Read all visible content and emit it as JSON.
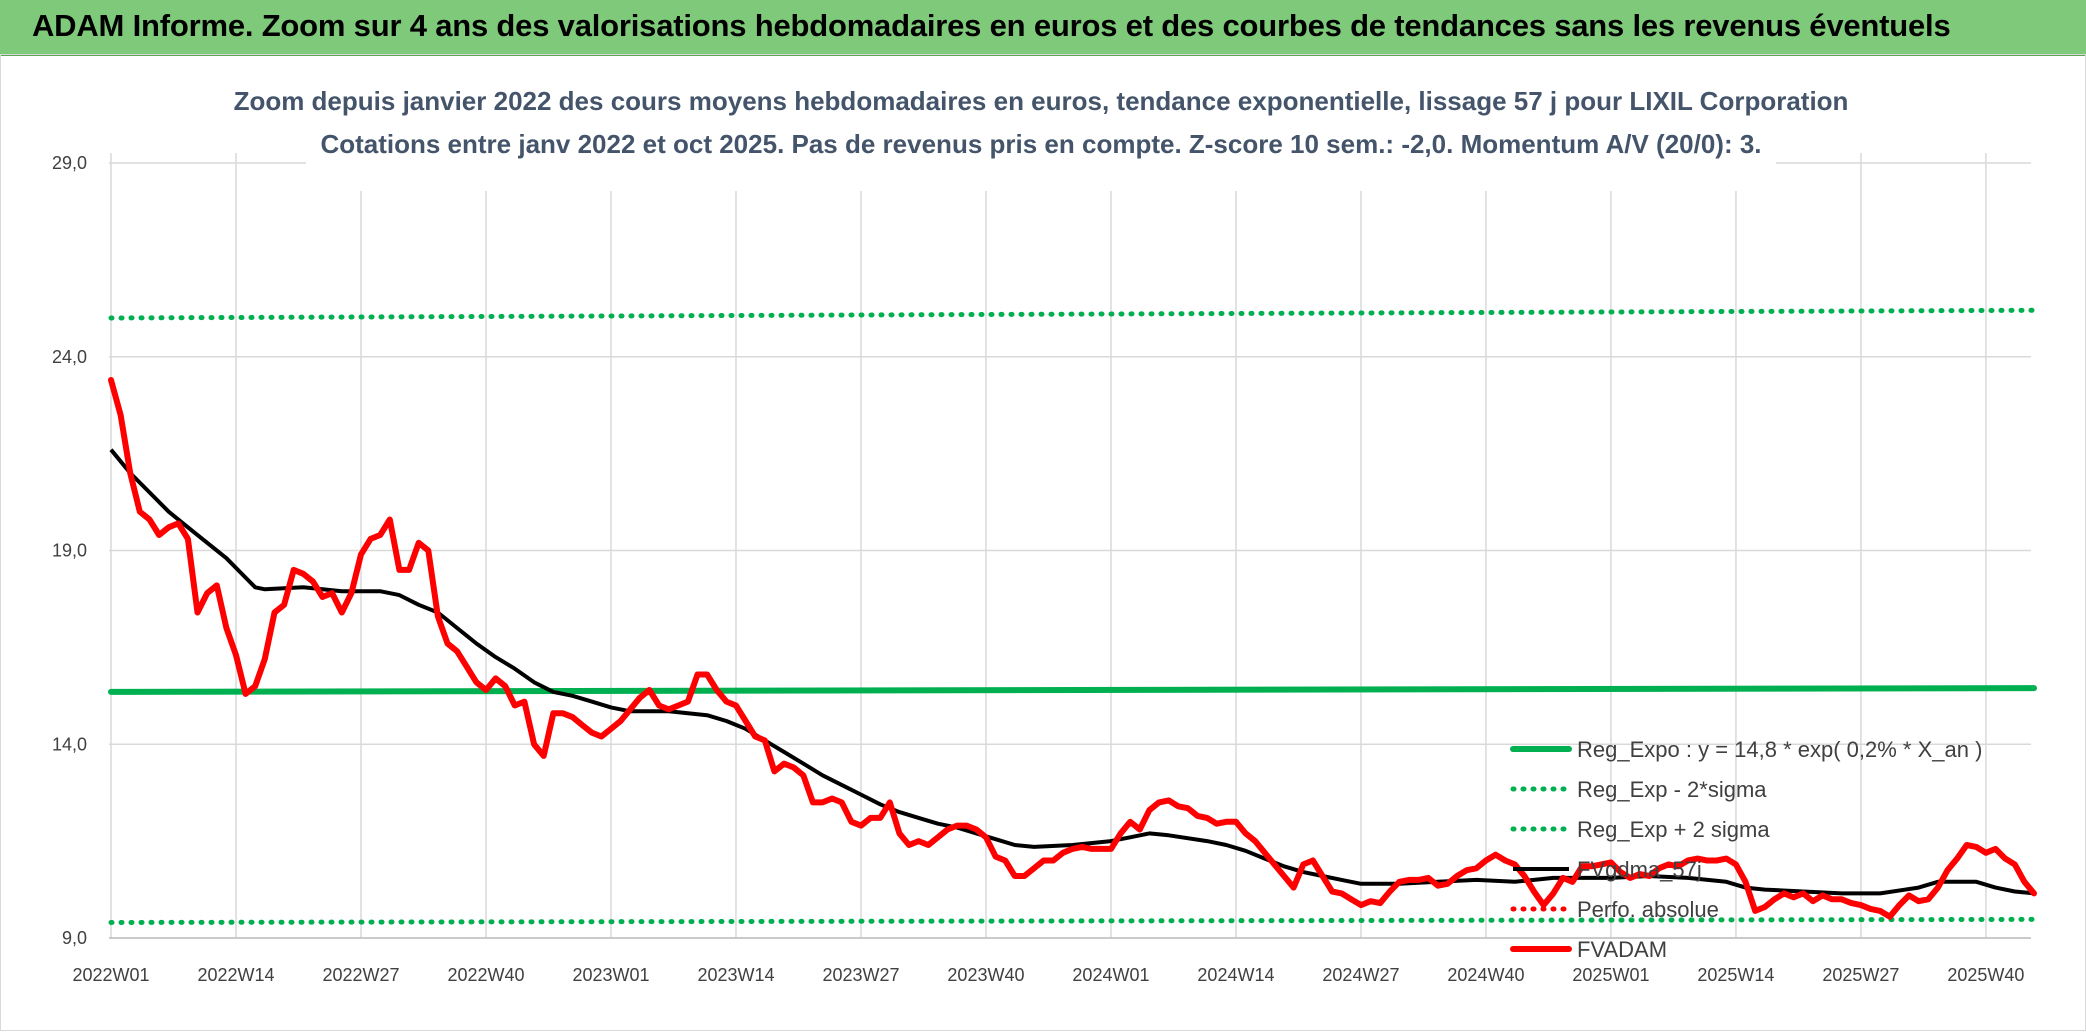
{
  "banner": {
    "title": "ADAM Informe. Zoom sur 4 ans des valorisations hebdomadaires en euros et des courbes de tendances sans les revenus éventuels",
    "color": "#7fc97a"
  },
  "chart_data": {
    "type": "line",
    "title_line1": "Zoom depuis janvier 2022 des cours moyens hebdomadaires en euros, tendance exponentielle, lissage 57 j pour LIXIL Corporation",
    "title_line2": "Cotations entre janv 2022 et oct 2025. Pas de revenus pris en compte. Z-score 10 sem.: -2,0. Momentum A/V (20/0): 3.",
    "ylim": [
      9.0,
      29.0
    ],
    "y_ticks": [
      "9,0",
      "14,0",
      "19,0",
      "24,0",
      "29,0"
    ],
    "x_ticks": [
      "2022W01",
      "2022W14",
      "2022W27",
      "2022W40",
      "2023W01",
      "2023W14",
      "2023W27",
      "2023W40",
      "2024W01",
      "2024W14",
      "2024W27",
      "2024W40",
      "2025W01",
      "2025W14",
      "2025W27",
      "2025W40"
    ],
    "x_tick_weeks": [
      0,
      13,
      26,
      39,
      52,
      65,
      78,
      91,
      104,
      117,
      130,
      143,
      156,
      169,
      182,
      195
    ],
    "n_weeks": 201,
    "grid": true,
    "legend_position": "right",
    "series": [
      {
        "name": "Reg_Expo : y = 14,8 * exp( 0,2% * X_an )",
        "color": "#00b050",
        "style": "solid-thick",
        "points": [
          [
            0,
            15.35
          ],
          [
            200,
            15.45
          ]
        ]
      },
      {
        "name": "Reg_Exp - 2*sigma",
        "color": "#00b050",
        "style": "dotted",
        "points": [
          [
            0,
            9.4
          ],
          [
            200,
            9.48
          ]
        ]
      },
      {
        "name": "Reg_Exp + 2 sigma",
        "color": "#00b050",
        "style": "dotted",
        "points": [
          [
            0,
            25.0
          ],
          [
            200,
            25.2
          ]
        ]
      },
      {
        "name": "FVgdma_57j",
        "color": "#000000",
        "style": "solid",
        "points": [
          [
            0,
            21.6
          ],
          [
            2,
            21.0
          ],
          [
            4,
            20.5
          ],
          [
            6,
            20.0
          ],
          [
            8,
            19.6
          ],
          [
            10,
            19.2
          ],
          [
            12,
            18.8
          ],
          [
            14,
            18.3
          ],
          [
            15,
            18.05
          ],
          [
            16,
            18.0
          ],
          [
            20,
            18.05
          ],
          [
            24,
            17.95
          ],
          [
            28,
            17.95
          ],
          [
            30,
            17.85
          ],
          [
            32,
            17.6
          ],
          [
            34,
            17.4
          ],
          [
            36,
            17.0
          ],
          [
            38,
            16.6
          ],
          [
            40,
            16.25
          ],
          [
            42,
            15.95
          ],
          [
            44,
            15.6
          ],
          [
            46,
            15.35
          ],
          [
            48,
            15.25
          ],
          [
            50,
            15.1
          ],
          [
            52,
            14.95
          ],
          [
            54,
            14.85
          ],
          [
            58,
            14.85
          ],
          [
            62,
            14.75
          ],
          [
            64,
            14.6
          ],
          [
            66,
            14.4
          ],
          [
            68,
            14.1
          ],
          [
            70,
            13.8
          ],
          [
            72,
            13.5
          ],
          [
            74,
            13.2
          ],
          [
            76,
            12.95
          ],
          [
            78,
            12.7
          ],
          [
            80,
            12.45
          ],
          [
            82,
            12.25
          ],
          [
            84,
            12.1
          ],
          [
            86,
            11.95
          ],
          [
            88,
            11.85
          ],
          [
            90,
            11.7
          ],
          [
            92,
            11.55
          ],
          [
            94,
            11.4
          ],
          [
            96,
            11.35
          ],
          [
            100,
            11.4
          ],
          [
            104,
            11.5
          ],
          [
            106,
            11.6
          ],
          [
            108,
            11.7
          ],
          [
            110,
            11.65
          ],
          [
            114,
            11.5
          ],
          [
            116,
            11.4
          ],
          [
            118,
            11.25
          ],
          [
            120,
            11.05
          ],
          [
            122,
            10.85
          ],
          [
            124,
            10.7
          ],
          [
            126,
            10.6
          ],
          [
            128,
            10.5
          ],
          [
            130,
            10.4
          ],
          [
            134,
            10.4
          ],
          [
            138,
            10.45
          ],
          [
            142,
            10.5
          ],
          [
            146,
            10.45
          ],
          [
            148,
            10.5
          ],
          [
            150,
            10.55
          ],
          [
            156,
            10.55
          ],
          [
            160,
            10.6
          ],
          [
            164,
            10.55
          ],
          [
            168,
            10.45
          ],
          [
            170,
            10.3
          ],
          [
            172,
            10.25
          ],
          [
            176,
            10.2
          ],
          [
            180,
            10.15
          ],
          [
            184,
            10.15
          ],
          [
            188,
            10.3
          ],
          [
            190,
            10.45
          ],
          [
            194,
            10.45
          ],
          [
            196,
            10.3
          ],
          [
            198,
            10.2
          ],
          [
            200,
            10.15
          ]
        ]
      },
      {
        "name": "Perfo. absolue",
        "color": "#ff0000",
        "style": "dotted",
        "points": []
      },
      {
        "name": "FVADAM",
        "color": "#ff0000",
        "style": "solid-thick",
        "points": [
          [
            0,
            23.4
          ],
          [
            1,
            22.5
          ],
          [
            2,
            21.0
          ],
          [
            3,
            20.0
          ],
          [
            4,
            19.8
          ],
          [
            5,
            19.4
          ],
          [
            6,
            19.6
          ],
          [
            7,
            19.7
          ],
          [
            8,
            19.3
          ],
          [
            9,
            17.4
          ],
          [
            10,
            17.9
          ],
          [
            11,
            18.1
          ],
          [
            12,
            17.0
          ],
          [
            13,
            16.3
          ],
          [
            14,
            15.3
          ],
          [
            15,
            15.5
          ],
          [
            16,
            16.2
          ],
          [
            17,
            17.4
          ],
          [
            18,
            17.6
          ],
          [
            19,
            18.5
          ],
          [
            20,
            18.4
          ],
          [
            21,
            18.2
          ],
          [
            22,
            17.8
          ],
          [
            23,
            17.9
          ],
          [
            24,
            17.4
          ],
          [
            25,
            17.9
          ],
          [
            26,
            18.9
          ],
          [
            27,
            19.3
          ],
          [
            28,
            19.4
          ],
          [
            29,
            19.8
          ],
          [
            30,
            18.5
          ],
          [
            31,
            18.5
          ],
          [
            32,
            19.2
          ],
          [
            33,
            19.0
          ],
          [
            34,
            17.3
          ],
          [
            35,
            16.6
          ],
          [
            36,
            16.4
          ],
          [
            37,
            16.0
          ],
          [
            38,
            15.6
          ],
          [
            39,
            15.4
          ],
          [
            40,
            15.7
          ],
          [
            41,
            15.5
          ],
          [
            42,
            15.0
          ],
          [
            43,
            15.1
          ],
          [
            44,
            14.0
          ],
          [
            45,
            13.7
          ],
          [
            46,
            14.8
          ],
          [
            47,
            14.8
          ],
          [
            48,
            14.7
          ],
          [
            49,
            14.5
          ],
          [
            50,
            14.3
          ],
          [
            51,
            14.2
          ],
          [
            52,
            14.4
          ],
          [
            53,
            14.6
          ],
          [
            54,
            14.9
          ],
          [
            55,
            15.2
          ],
          [
            56,
            15.4
          ],
          [
            57,
            15.0
          ],
          [
            58,
            14.9
          ],
          [
            59,
            15.0
          ],
          [
            60,
            15.1
          ],
          [
            61,
            15.8
          ],
          [
            62,
            15.8
          ],
          [
            63,
            15.4
          ],
          [
            64,
            15.1
          ],
          [
            65,
            15.0
          ],
          [
            66,
            14.6
          ],
          [
            67,
            14.2
          ],
          [
            68,
            14.1
          ],
          [
            69,
            13.3
          ],
          [
            70,
            13.5
          ],
          [
            71,
            13.4
          ],
          [
            72,
            13.2
          ],
          [
            73,
            12.5
          ],
          [
            74,
            12.5
          ],
          [
            75,
            12.6
          ],
          [
            76,
            12.5
          ],
          [
            77,
            12.0
          ],
          [
            78,
            11.9
          ],
          [
            79,
            12.1
          ],
          [
            80,
            12.1
          ],
          [
            81,
            12.5
          ],
          [
            82,
            11.7
          ],
          [
            83,
            11.4
          ],
          [
            84,
            11.5
          ],
          [
            85,
            11.4
          ],
          [
            86,
            11.6
          ],
          [
            87,
            11.8
          ],
          [
            88,
            11.9
          ],
          [
            89,
            11.9
          ],
          [
            90,
            11.8
          ],
          [
            91,
            11.6
          ],
          [
            92,
            11.1
          ],
          [
            93,
            11.0
          ],
          [
            94,
            10.6
          ],
          [
            95,
            10.6
          ],
          [
            96,
            10.8
          ],
          [
            97,
            11.0
          ],
          [
            98,
            11.0
          ],
          [
            99,
            11.2
          ],
          [
            100,
            11.3
          ],
          [
            101,
            11.35
          ],
          [
            102,
            11.3
          ],
          [
            103,
            11.3
          ],
          [
            104,
            11.3
          ],
          [
            105,
            11.7
          ],
          [
            106,
            12.0
          ],
          [
            107,
            11.8
          ],
          [
            108,
            12.3
          ],
          [
            109,
            12.5
          ],
          [
            110,
            12.55
          ],
          [
            111,
            12.4
          ],
          [
            112,
            12.35
          ],
          [
            113,
            12.15
          ],
          [
            114,
            12.1
          ],
          [
            115,
            11.95
          ],
          [
            116,
            12.0
          ],
          [
            117,
            12.0
          ],
          [
            118,
            11.7
          ],
          [
            119,
            11.5
          ],
          [
            120,
            11.2
          ],
          [
            121,
            10.9
          ],
          [
            122,
            10.6
          ],
          [
            123,
            10.3
          ],
          [
            124,
            10.9
          ],
          [
            125,
            11.0
          ],
          [
            126,
            10.6
          ],
          [
            127,
            10.2
          ],
          [
            128,
            10.15
          ],
          [
            129,
            10.0
          ],
          [
            130,
            9.85
          ],
          [
            131,
            9.95
          ],
          [
            132,
            9.9
          ],
          [
            133,
            10.2
          ],
          [
            134,
            10.45
          ],
          [
            135,
            10.5
          ],
          [
            136,
            10.5
          ],
          [
            137,
            10.55
          ],
          [
            138,
            10.35
          ],
          [
            139,
            10.4
          ],
          [
            140,
            10.6
          ],
          [
            141,
            10.75
          ],
          [
            142,
            10.8
          ],
          [
            143,
            11.0
          ],
          [
            144,
            11.15
          ],
          [
            145,
            11.0
          ],
          [
            146,
            10.9
          ],
          [
            147,
            10.6
          ],
          [
            148,
            10.2
          ],
          [
            149,
            9.85
          ],
          [
            150,
            10.15
          ],
          [
            151,
            10.55
          ],
          [
            152,
            10.45
          ],
          [
            153,
            10.85
          ],
          [
            154,
            10.85
          ],
          [
            155,
            10.9
          ],
          [
            156,
            10.95
          ],
          [
            157,
            10.7
          ],
          [
            158,
            10.55
          ],
          [
            159,
            10.65
          ],
          [
            160,
            10.6
          ],
          [
            161,
            10.8
          ],
          [
            162,
            10.9
          ],
          [
            163,
            10.85
          ],
          [
            164,
            11.0
          ],
          [
            165,
            11.05
          ],
          [
            166,
            11.0
          ],
          [
            167,
            11.0
          ],
          [
            168,
            11.05
          ],
          [
            169,
            10.9
          ],
          [
            170,
            10.45
          ],
          [
            171,
            9.7
          ],
          [
            172,
            9.8
          ],
          [
            173,
            10.0
          ],
          [
            174,
            10.15
          ],
          [
            175,
            10.05
          ],
          [
            176,
            10.15
          ],
          [
            177,
            9.95
          ],
          [
            178,
            10.1
          ],
          [
            179,
            10.0
          ],
          [
            180,
            10.0
          ],
          [
            181,
            9.9
          ],
          [
            182,
            9.85
          ],
          [
            183,
            9.75
          ],
          [
            184,
            9.7
          ],
          [
            185,
            9.55
          ],
          [
            186,
            9.85
          ],
          [
            187,
            10.1
          ],
          [
            188,
            9.95
          ],
          [
            189,
            10.0
          ],
          [
            190,
            10.3
          ],
          [
            191,
            10.75
          ],
          [
            192,
            11.05
          ],
          [
            193,
            11.4
          ],
          [
            194,
            11.35
          ],
          [
            195,
            11.2
          ],
          [
            196,
            11.3
          ],
          [
            197,
            11.05
          ],
          [
            198,
            10.9
          ],
          [
            199,
            10.45
          ],
          [
            200,
            10.15
          ]
        ]
      }
    ]
  }
}
